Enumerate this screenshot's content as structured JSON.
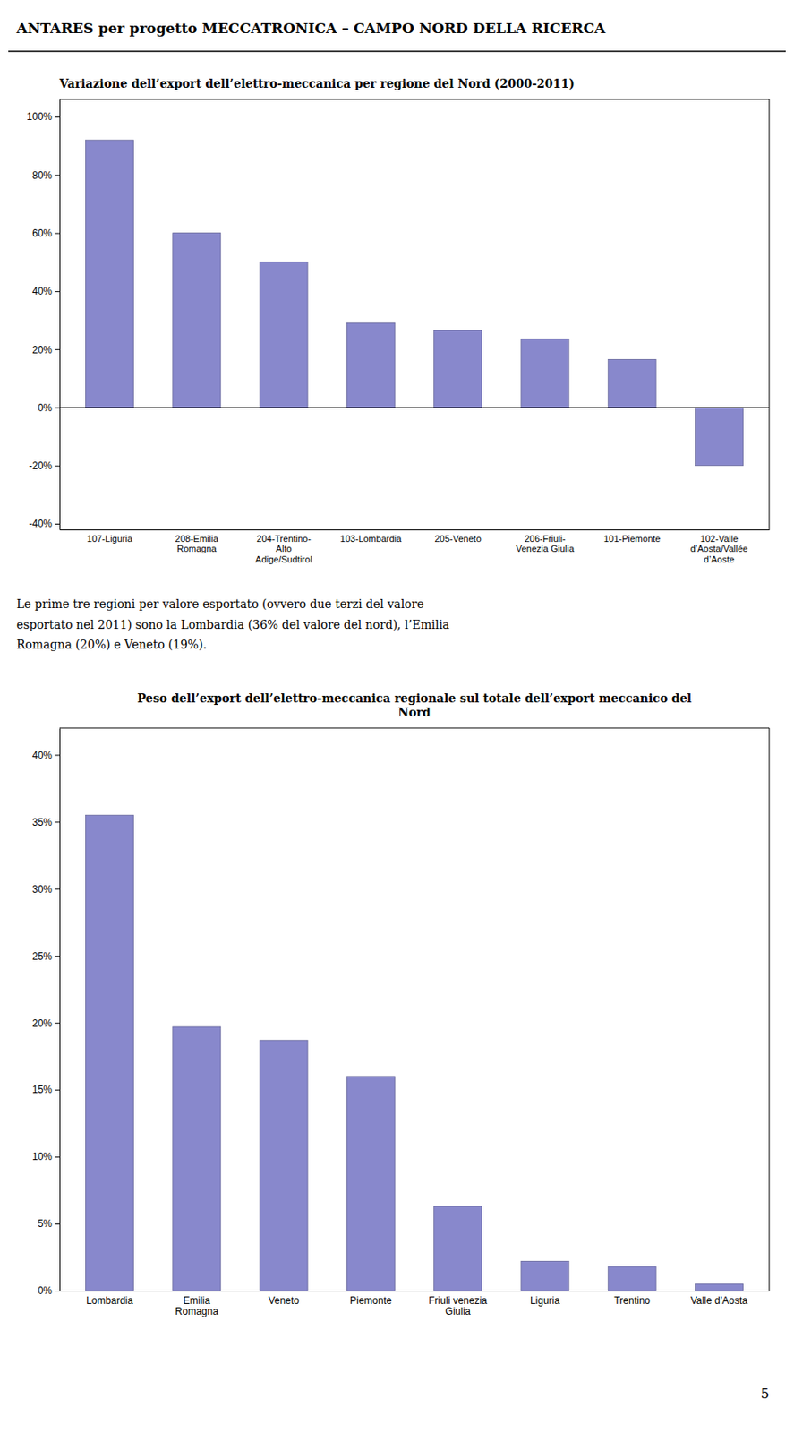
{
  "title": "ANTARES per progetto MECCATRONICA – CAMPO NORD DELLA RICERCA",
  "paragraph": "Le prime tre regioni per valore esportato (ovvero due terzi del valore\nesportato nel 2011) sono la Lombardia (36% del valore del nord), l’Emilia\nRomagna (20%) e Veneto (19%).",
  "page_number": "5",
  "chart_data": [
    {
      "type": "bar",
      "title": "Variazione dell’export dell’elettro-meccanica per regione del Nord (2000-2011)",
      "categories": [
        "107-Liguria",
        "208-Emilia\nRomagna",
        "204-Trentino-\nAlto\nAdige/Sudtirol",
        "103-Lombardia",
        "205-Veneto",
        "206-Friuli-\nVenezia Giulia",
        "101-Piemonte",
        "102-Valle\nd’Aosta/Vallée\nd’Aoste"
      ],
      "values": [
        0.92,
        0.6,
        0.5,
        0.29,
        0.265,
        0.235,
        0.165,
        -0.2
      ],
      "color": "#8888CC",
      "ylim": [
        -0.42,
        1.06
      ],
      "yticks": [
        {
          "value": -0.4,
          "label": "-40%"
        },
        {
          "value": -0.2,
          "label": "-20%"
        },
        {
          "value": 0.0,
          "label": "0%"
        },
        {
          "value": 0.2,
          "label": "20%"
        },
        {
          "value": 0.4,
          "label": "40%"
        },
        {
          "value": 0.6,
          "label": "60%"
        },
        {
          "value": 0.8,
          "label": "80%"
        },
        {
          "value": 1.0,
          "label": "100%"
        }
      ],
      "grid": false
    },
    {
      "type": "bar",
      "title": "Peso dell’export dell’elettro-meccanica regionale sul totale dell’export meccanico del\nNord",
      "categories": [
        "Lombardia",
        "Emilia\nRomagna",
        "Veneto",
        "Piemonte",
        "Friuli venezia\nGiulia",
        "Liguria",
        "Trentino",
        "Valle d’Aosta"
      ],
      "values": [
        0.355,
        0.197,
        0.187,
        0.16,
        0.063,
        0.022,
        0.018,
        0.005
      ],
      "color": "#8888CC",
      "ylim": [
        0,
        0.42
      ],
      "yticks": [
        {
          "value": 0.0,
          "label": "0%"
        },
        {
          "value": 0.05,
          "label": "5%"
        },
        {
          "value": 0.1,
          "label": "10%"
        },
        {
          "value": 0.15,
          "label": "15%"
        },
        {
          "value": 0.2,
          "label": "20%"
        },
        {
          "value": 0.25,
          "label": "25%"
        },
        {
          "value": 0.3,
          "label": "30%"
        },
        {
          "value": 0.35,
          "label": "35%"
        },
        {
          "value": 0.4,
          "label": "40%"
        }
      ],
      "grid": false
    }
  ]
}
